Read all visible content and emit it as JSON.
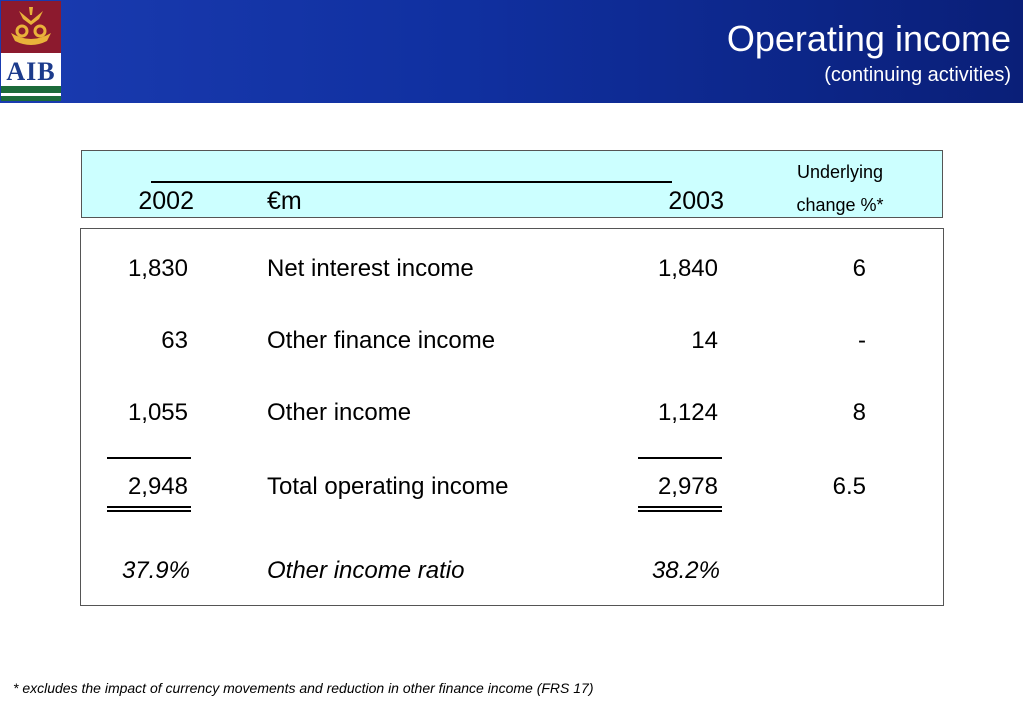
{
  "header": {
    "title": "Operating income",
    "subtitle": "(continuing activities)",
    "logo_text": "AIB",
    "colors": {
      "banner": "#1030a0",
      "logo_top": "#8c1a2e",
      "logo_stripe": "#1c6b3a",
      "header_box": "#ccffff"
    }
  },
  "columns": {
    "year_prev": "2002",
    "unit": "€m",
    "year_curr": "2003",
    "change_line1": "Underlying",
    "change_line2": "change %*"
  },
  "rows": [
    {
      "prev": "1,830",
      "label": "Net interest income",
      "curr": "1,840",
      "change": "6"
    },
    {
      "prev": "63",
      "label": "Other finance income",
      "curr": "14",
      "change": "-"
    },
    {
      "prev": "1,055",
      "label": "Other income",
      "curr": "1,124",
      "change": "8"
    },
    {
      "prev": "2,948",
      "label": "Total operating income",
      "curr": "2,978",
      "change": "6.5"
    },
    {
      "prev": "37.9%",
      "label": "Other income ratio",
      "curr": "38.2%",
      "change": ""
    }
  ],
  "footnote": "* excludes the impact of currency movements and reduction in other finance income (FRS 17)"
}
